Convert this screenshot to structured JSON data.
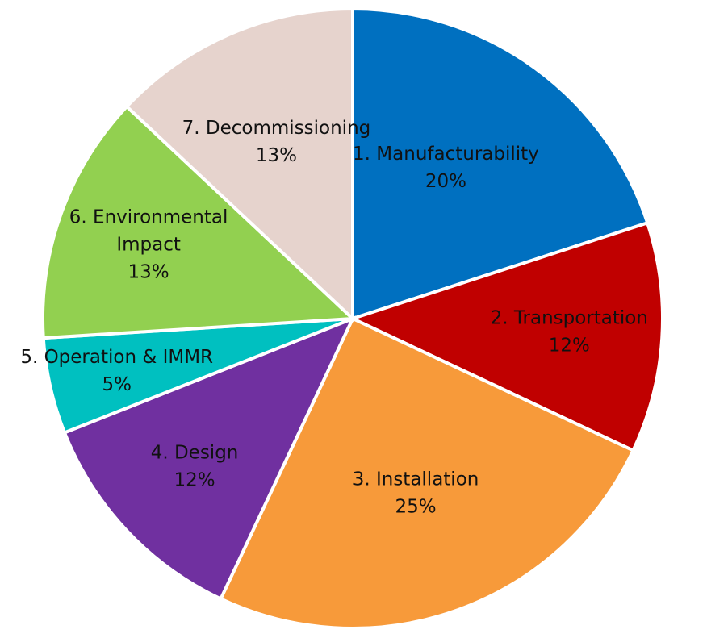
{
  "chart_data": {
    "type": "pie",
    "title": "",
    "start_angle_deg": 0,
    "direction": "clockwise",
    "slices": [
      {
        "name": "1. Manufacturability",
        "label_lines": [
          "1. Manufacturability"
        ],
        "value": 20,
        "percent_label": "20%",
        "color": "#0070C0"
      },
      {
        "name": "2. Transportation",
        "label_lines": [
          "2. Transportation"
        ],
        "value": 12,
        "percent_label": "12%",
        "color": "#C00000"
      },
      {
        "name": "3. Installation",
        "label_lines": [
          "3. Installation"
        ],
        "value": 25,
        "percent_label": "25%",
        "color": "#F79A3A"
      },
      {
        "name": "4. Design",
        "label_lines": [
          "4. Design"
        ],
        "value": 12,
        "percent_label": "12%",
        "color": "#7030A0"
      },
      {
        "name": "5. Operation & IMMR",
        "label_lines": [
          "5. Operation & IMMR"
        ],
        "value": 5,
        "percent_label": "5%",
        "color": "#00C0C0"
      },
      {
        "name": "6. Environmental Impact",
        "label_lines": [
          "6. Environmental",
          "Impact"
        ],
        "value": 13,
        "percent_label": "13%",
        "color": "#92D050"
      },
      {
        "name": "7. Decommissioning",
        "label_lines": [
          "7. Decommissioning"
        ],
        "value": 13,
        "percent_label": "13%",
        "color": "#E6D3CD"
      }
    ]
  }
}
